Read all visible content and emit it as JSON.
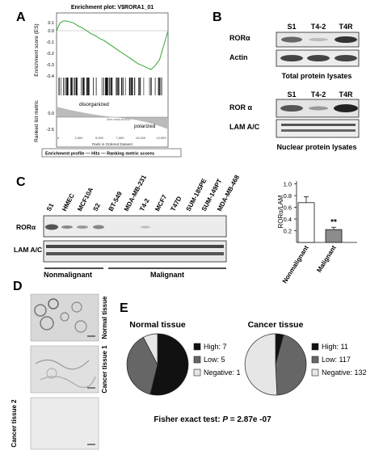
{
  "panelA": {
    "letter": "A",
    "title": "Enrichment plot: V$RORA1_01",
    "ylabel_es": "Enrichment score (ES)",
    "ylabel_rank": "Ranked list metric",
    "es_ticks": [
      "0.1",
      "0.0",
      "-0.1",
      "-0.2",
      "-0.3",
      "-0.4"
    ],
    "rank_ticks": [
      "0.0",
      "-2.5"
    ],
    "xticks": [
      "0",
      "2,500",
      "5,000",
      "7,500",
      "10,000",
      "12,500"
    ],
    "xlabel": "Rank in Ordered Dataset",
    "label_disorganized": "disorganized",
    "label_polarized": "polarized",
    "zero_cross_note": "Zero cross at 6313",
    "legend": "Enrichment profile — Hits — Ranking metric scores",
    "curve": {
      "x": [
        0,
        400,
        800,
        1200,
        1600,
        2000,
        2500,
        3000,
        3500,
        4000,
        4500,
        5000,
        5500,
        6000,
        6500,
        7000,
        7500,
        8000,
        8500,
        9000,
        9500,
        10000,
        10500,
        11000,
        11500,
        12000,
        12500,
        13000
      ],
      "y": [
        0.0,
        0.08,
        0.1,
        0.1,
        0.09,
        0.08,
        0.05,
        0.03,
        0.0,
        -0.03,
        -0.05,
        -0.08,
        -0.1,
        -0.13,
        -0.16,
        -0.19,
        -0.22,
        -0.25,
        -0.28,
        -0.31,
        -0.34,
        -0.36,
        -0.38,
        -0.4,
        -0.36,
        -0.3,
        -0.15,
        0.0
      ]
    }
  },
  "panelB": {
    "letter": "B",
    "lanes": [
      "S1",
      "T4-2",
      "T4R"
    ],
    "top_rows": [
      "RORα",
      "Actin"
    ],
    "top_caption": "Total protein lysates",
    "bottom_rows": [
      "ROR α",
      "LAM A/C"
    ],
    "bottom_caption": "Nuclear protein lysates"
  },
  "panelC": {
    "letter": "C",
    "lanes": [
      "S1",
      "HMEC",
      "MCF10A",
      "S2",
      "BT-549",
      "MDA-MB-231",
      "T4-2",
      "MCF7",
      "T47D",
      "SUM-185PE",
      "SUM-149PT",
      "MDA-MB-468"
    ],
    "rows": [
      "RORα",
      "LAM A/C"
    ],
    "group_nonmalignant": "Nonmalignant",
    "group_malignant": "Malignant"
  },
  "barC": {
    "ylabel": "RORα/LAM",
    "ticks": [
      "1.0",
      "0.8",
      "0.6",
      "0.4",
      "0.2"
    ],
    "significance": "**",
    "chart_data": {
      "type": "bar",
      "categories": [
        "Nonmalignant",
        "Malignant"
      ],
      "values": [
        0.68,
        0.22
      ],
      "errors": [
        0.1,
        0.04
      ],
      "ylabel": "RORα/LAM",
      "ylim": [
        0,
        1.05
      ],
      "legend": "none",
      "colors": [
        "#ffffff",
        "#8c8c8c"
      ]
    }
  },
  "panelD": {
    "letter": "D",
    "labels": [
      "Normal tissue",
      "Cancer tissue 1",
      "Cancer tissue 2"
    ]
  },
  "panelE": {
    "letter": "E",
    "normal": {
      "title": "Normal tissue",
      "chart_data": {
        "type": "pie",
        "categories": [
          "High",
          "Low",
          "Negative"
        ],
        "values": [
          7,
          5,
          1
        ],
        "colors": [
          "#111111",
          "#666666",
          "#e6e6e6"
        ]
      },
      "legend": [
        "High: 7",
        "Low: 5",
        "Negative: 1"
      ]
    },
    "cancer": {
      "title": "Cancer tissue",
      "chart_data": {
        "type": "pie",
        "categories": [
          "High",
          "Low",
          "Negative"
        ],
        "values": [
          11,
          117,
          132
        ],
        "colors": [
          "#111111",
          "#666666",
          "#e6e6e6"
        ]
      },
      "legend": [
        "High: 11",
        "Low: 117",
        "Negative: 132"
      ]
    },
    "fisher_prefix": "Fisher exact test: ",
    "fisher_p": "P",
    "fisher_value": " = 2.87e -07"
  }
}
